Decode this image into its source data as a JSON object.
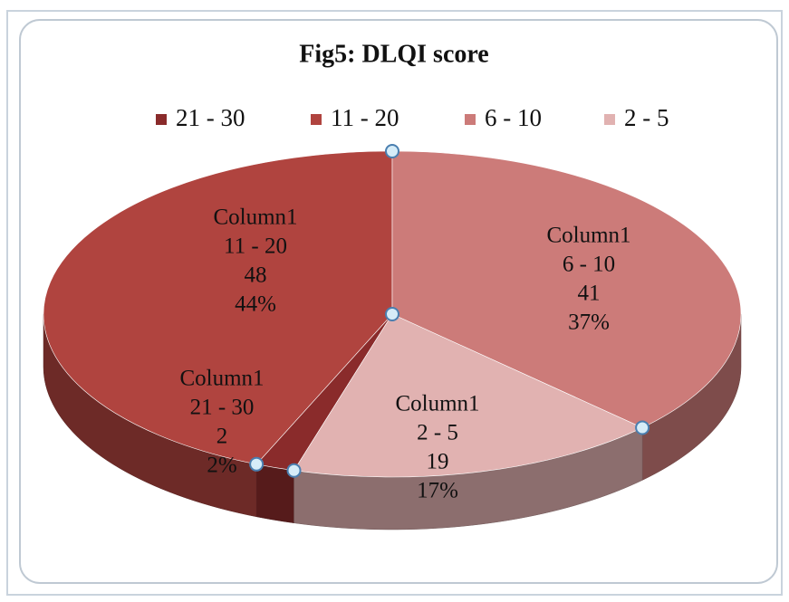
{
  "chart_data": {
    "type": "pie3d",
    "title": "Fig5: DLQI score",
    "categories": [
      "21 - 30",
      "11 - 20",
      "6 - 10",
      "2 - 5"
    ],
    "series": [
      {
        "name": "Column1",
        "values": [
          2,
          48,
          41,
          19
        ],
        "value_labels": [
          "2",
          "48",
          "41",
          "19"
        ],
        "percent_labels": [
          "2%",
          "44%",
          "37%",
          "17%"
        ],
        "colors": [
          "#8a2b2b",
          "#b0443f",
          "#cc7b79",
          "#e1b2b1"
        ]
      }
    ],
    "legend": "top"
  }
}
